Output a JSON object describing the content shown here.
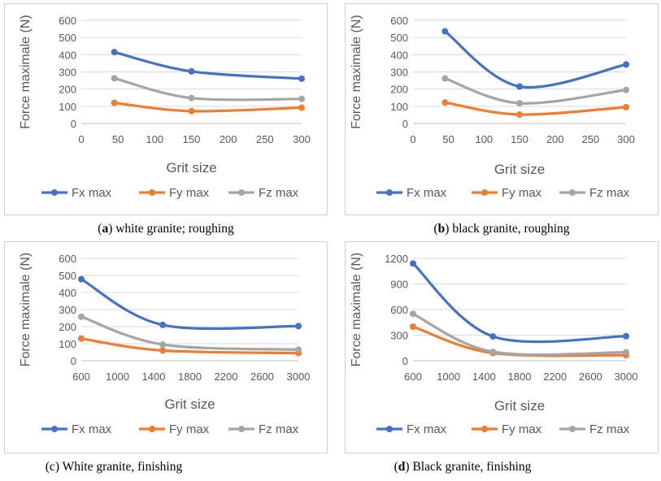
{
  "chart_data": [
    {
      "type": "line",
      "caption_letter": "a",
      "caption_text": " white granite; roughing",
      "xlabel": "Grit size",
      "ylabel": "Force maximale (N)",
      "xlim": [
        0,
        300
      ],
      "xticks": [
        0,
        50,
        100,
        150,
        200,
        250,
        300
      ],
      "ylim": [
        0,
        600
      ],
      "yticks": [
        0,
        100,
        200,
        300,
        400,
        500,
        600
      ],
      "x": [
        45,
        150,
        300
      ],
      "series": [
        {
          "name": "Fx max",
          "color": "#4472c4",
          "values": [
            415,
            303,
            261
          ]
        },
        {
          "name": "Fy max",
          "color": "#ed7d31",
          "values": [
            120,
            72,
            92
          ]
        },
        {
          "name": "Fz max",
          "color": "#a5a5a5",
          "values": [
            263,
            148,
            143
          ]
        }
      ],
      "legend": "bottom"
    },
    {
      "type": "line",
      "caption_letter": "b",
      "caption_text": " black granite, roughing",
      "xlabel": "Grit size",
      "ylabel": "Force maximale (N)",
      "xlim": [
        0,
        300
      ],
      "xticks": [
        0,
        50,
        100,
        150,
        200,
        250,
        300
      ],
      "ylim": [
        0,
        600
      ],
      "yticks": [
        0,
        100,
        200,
        300,
        400,
        500,
        600
      ],
      "x": [
        45,
        150,
        300
      ],
      "series": [
        {
          "name": "Fx max",
          "color": "#4472c4",
          "values": [
            536,
            215,
            343
          ]
        },
        {
          "name": "Fy max",
          "color": "#ed7d31",
          "values": [
            122,
            52,
            95
          ]
        },
        {
          "name": "Fz max",
          "color": "#a5a5a5",
          "values": [
            262,
            118,
            195
          ]
        }
      ],
      "legend": "bottom"
    },
    {
      "type": "line",
      "caption_letter": "c",
      "caption_text": " White granite, finishing",
      "xlabel": "Grit size",
      "ylabel": "Force maximale (N)",
      "xlim": [
        600,
        3000
      ],
      "xticks": [
        600,
        1000,
        1400,
        1800,
        2200,
        2600,
        3000
      ],
      "ylim": [
        0,
        600
      ],
      "yticks": [
        0,
        100,
        200,
        300,
        400,
        500,
        600
      ],
      "x": [
        600,
        1500,
        3000
      ],
      "series": [
        {
          "name": "Fx max",
          "color": "#4472c4",
          "values": [
            478,
            210,
            203
          ]
        },
        {
          "name": "Fy max",
          "color": "#ed7d31",
          "values": [
            130,
            60,
            45
          ]
        },
        {
          "name": "Fz max",
          "color": "#a5a5a5",
          "values": [
            258,
            95,
            65
          ]
        }
      ],
      "legend": "bottom"
    },
    {
      "type": "line",
      "caption_letter": "d",
      "caption_text": " Black granite, finishing",
      "xlabel": "Grit size",
      "ylabel": "Force maximale (N)",
      "xlim": [
        600,
        3000
      ],
      "xticks": [
        600,
        1000,
        1400,
        1800,
        2200,
        2600,
        3000
      ],
      "ylim": [
        0,
        1200
      ],
      "yticks": [
        0,
        300,
        600,
        900,
        1200
      ],
      "x": [
        600,
        1500,
        3000
      ],
      "series": [
        {
          "name": "Fx max",
          "color": "#4472c4",
          "values": [
            1140,
            285,
            288
          ]
        },
        {
          "name": "Fy max",
          "color": "#ed7d31",
          "values": [
            400,
            90,
            65
          ]
        },
        {
          "name": "Fz max",
          "color": "#a5a5a5",
          "values": [
            550,
            105,
            100
          ]
        }
      ],
      "legend": "bottom"
    }
  ]
}
